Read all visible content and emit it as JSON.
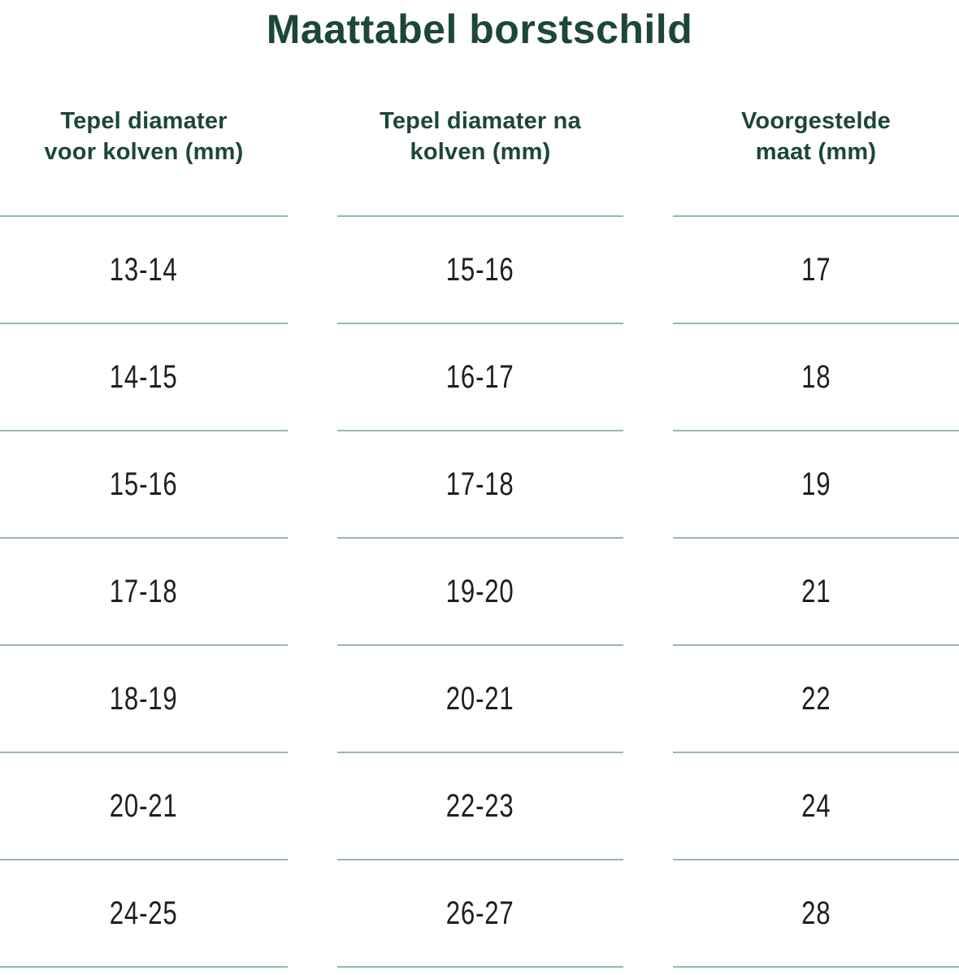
{
  "title": "Maattabel borstschild",
  "colors": {
    "heading_green": "#1c463a",
    "divider_teal": "#98b6b2",
    "cell_text": "#1f1f1f",
    "background": "#ffffff"
  },
  "table": {
    "columns": [
      {
        "label": "Tepel diamater voor kolven (mm)",
        "line1": "Tepel diamater",
        "line2": "voor kolven (mm)"
      },
      {
        "label": "Tepel diamater na kolven (mm)",
        "line1": "Tepel diamater na",
        "line2": "kolven (mm)"
      },
      {
        "label": "Voorgestelde maat (mm)",
        "line1": "Voorgestelde",
        "line2": "maat (mm)"
      }
    ],
    "rows": [
      [
        "13-14",
        "15-16",
        "17"
      ],
      [
        "14-15",
        "16-17",
        "18"
      ],
      [
        "15-16",
        "17-18",
        "19"
      ],
      [
        "17-18",
        "19-20",
        "21"
      ],
      [
        "18-19",
        "20-21",
        "22"
      ],
      [
        "20-21",
        "22-23",
        "24"
      ],
      [
        "24-25",
        "26-27",
        "28"
      ]
    ]
  },
  "chart_data": {
    "type": "table",
    "title": "Maattabel borstschild",
    "columns": [
      "Tepel diamater voor kolven (mm)",
      "Tepel diamater na kolven (mm)",
      "Voorgestelde maat (mm)"
    ],
    "rows": [
      [
        "13-14",
        "15-16",
        "17"
      ],
      [
        "14-15",
        "16-17",
        "18"
      ],
      [
        "15-16",
        "17-18",
        "19"
      ],
      [
        "17-18",
        "19-20",
        "21"
      ],
      [
        "18-19",
        "20-21",
        "22"
      ],
      [
        "20-21",
        "22-23",
        "24"
      ],
      [
        "24-25",
        "26-27",
        "28"
      ]
    ]
  }
}
